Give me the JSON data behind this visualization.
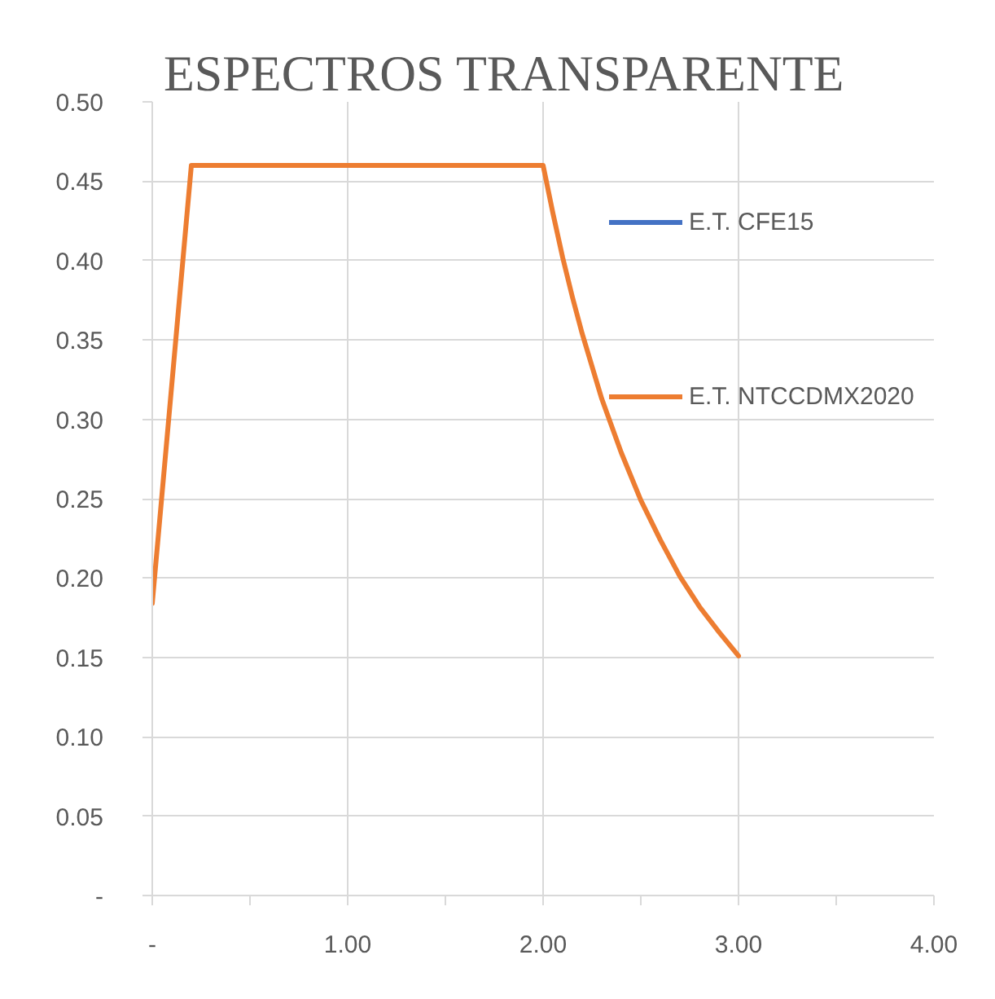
{
  "chart_data": {
    "type": "line",
    "title": "ESPECTROS TRANSPARENTE",
    "x": [
      0,
      0.2,
      2.0,
      2.05,
      2.1,
      2.15,
      2.2,
      2.3,
      2.4,
      2.5,
      2.6,
      2.7,
      2.8,
      2.9,
      3.0
    ],
    "series": [
      {
        "name": "E.T. CFE15",
        "color": "#4472c4",
        "values": [
          null,
          null,
          null,
          null,
          null,
          null,
          null,
          null,
          null,
          null,
          null,
          null,
          null,
          null,
          null
        ]
      },
      {
        "name": "E.T. NTCCDMX2020",
        "color": "#ed7d31",
        "values": [
          0.184,
          0.46,
          0.46,
          0.43,
          0.402,
          0.377,
          0.354,
          0.313,
          0.279,
          0.249,
          0.224,
          0.201,
          0.182,
          0.166,
          0.151
        ]
      }
    ],
    "xlim": [
      0,
      4
    ],
    "xticks": [
      {
        "value": 0,
        "label": "-"
      },
      {
        "value": 0.5,
        "label": null
      },
      {
        "value": 1,
        "label": "1.00"
      },
      {
        "value": 1.5,
        "label": null
      },
      {
        "value": 2,
        "label": "2.00"
      },
      {
        "value": 2.5,
        "label": null
      },
      {
        "value": 3,
        "label": "3.00"
      },
      {
        "value": 3.5,
        "label": null
      },
      {
        "value": 4,
        "label": "4.00"
      }
    ],
    "ylim": [
      0,
      0.5
    ],
    "yticks": [
      {
        "value": 0,
        "label": "-"
      },
      {
        "value": 0.05,
        "label": "0.05"
      },
      {
        "value": 0.1,
        "label": "0.10"
      },
      {
        "value": 0.15,
        "label": "0.15"
      },
      {
        "value": 0.2,
        "label": "0.20"
      },
      {
        "value": 0.25,
        "label": "0.25"
      },
      {
        "value": 0.3,
        "label": "0.30"
      },
      {
        "value": 0.35,
        "label": "0.35"
      },
      {
        "value": 0.4,
        "label": "0.40"
      },
      {
        "value": 0.45,
        "label": "0.45"
      },
      {
        "value": 0.5,
        "label": "0.50"
      }
    ],
    "grid": true,
    "legend": "top right",
    "line_style": "solid"
  }
}
